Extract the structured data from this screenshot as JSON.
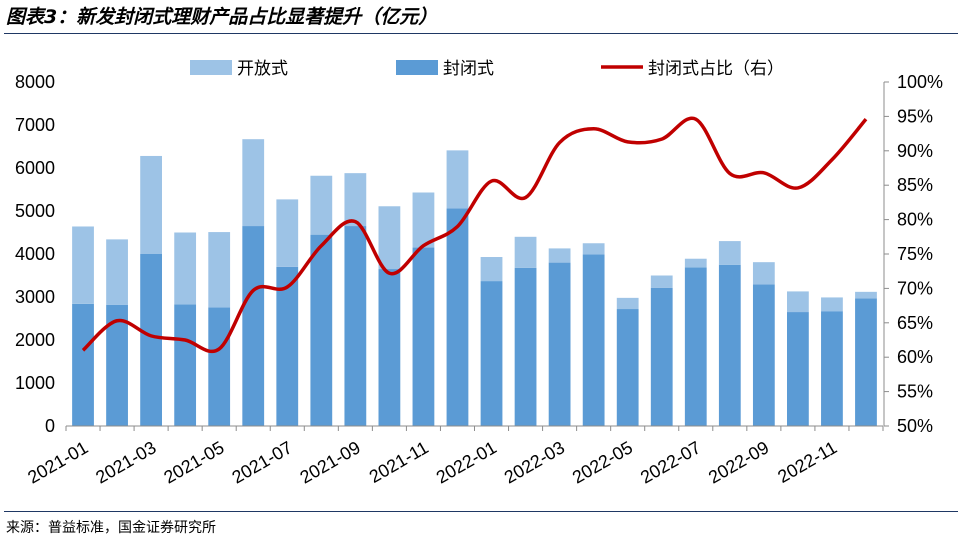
{
  "title": "图表3：新发封闭式理财产品占比显著提升（亿元）",
  "source": "来源：普益标准，国金证券研究所",
  "colors": {
    "open": "#9dc3e6",
    "closed": "#5b9bd5",
    "ratio": "#c00000",
    "rule": "#1f3864"
  },
  "chart_data": {
    "type": "bar",
    "stacked": true,
    "categories": [
      "2021-01",
      "2021-02",
      "2021-03",
      "2021-04",
      "2021-05",
      "2021-06",
      "2021-07",
      "2021-08",
      "2021-09",
      "2021-10",
      "2021-11",
      "2021-12",
      "2022-01",
      "2022-02",
      "2022-03",
      "2022-04",
      "2022-05",
      "2022-06",
      "2022-07",
      "2022-08",
      "2022-09",
      "2022-10",
      "2022-11",
      "2022-12"
    ],
    "x_tick_labels": [
      "2021-01",
      "2021-03",
      "2021-05",
      "2021-07",
      "2021-09",
      "2021-11",
      "2022-01",
      "2022-03",
      "2022-05",
      "2022-07",
      "2022-09",
      "2022-11"
    ],
    "series": [
      {
        "name": "开放式",
        "type": "bar",
        "axis": "left",
        "values": [
          1800,
          1520,
          2280,
          1670,
          1750,
          2020,
          1570,
          1370,
          1230,
          1460,
          1280,
          1350,
          560,
          720,
          330,
          260,
          260,
          290,
          200,
          550,
          520,
          480,
          320,
          150
        ]
      },
      {
        "name": "封闭式",
        "type": "bar",
        "axis": "left",
        "values": [
          2840,
          2820,
          4000,
          2830,
          2760,
          4650,
          3700,
          4450,
          4650,
          3650,
          4150,
          5060,
          3370,
          3680,
          3800,
          3990,
          2720,
          3210,
          3690,
          3750,
          3290,
          2650,
          2670,
          2970
        ]
      },
      {
        "name": "封闭式占比（右）",
        "type": "line",
        "axis": "right",
        "unit": "%",
        "values": [
          61.0,
          65.3,
          63.1,
          62.5,
          61.2,
          69.7,
          70.2,
          76.2,
          79.7,
          72.2,
          76.2,
          79.0,
          85.6,
          83.2,
          91.2,
          93.2,
          91.3,
          91.7,
          94.6,
          86.7,
          86.8,
          84.6,
          88.7,
          94.6
        ]
      }
    ],
    "y_left": {
      "min": 0,
      "max": 8000,
      "ticks": [
        0,
        1000,
        2000,
        3000,
        4000,
        5000,
        6000,
        7000,
        8000
      ]
    },
    "y_right": {
      "min": 50,
      "max": 100,
      "tick_labels": [
        "50%",
        "55%",
        "60%",
        "65%",
        "70%",
        "75%",
        "80%",
        "85%",
        "90%",
        "95%",
        "100%"
      ]
    },
    "legend_position": "top",
    "grid": false
  }
}
